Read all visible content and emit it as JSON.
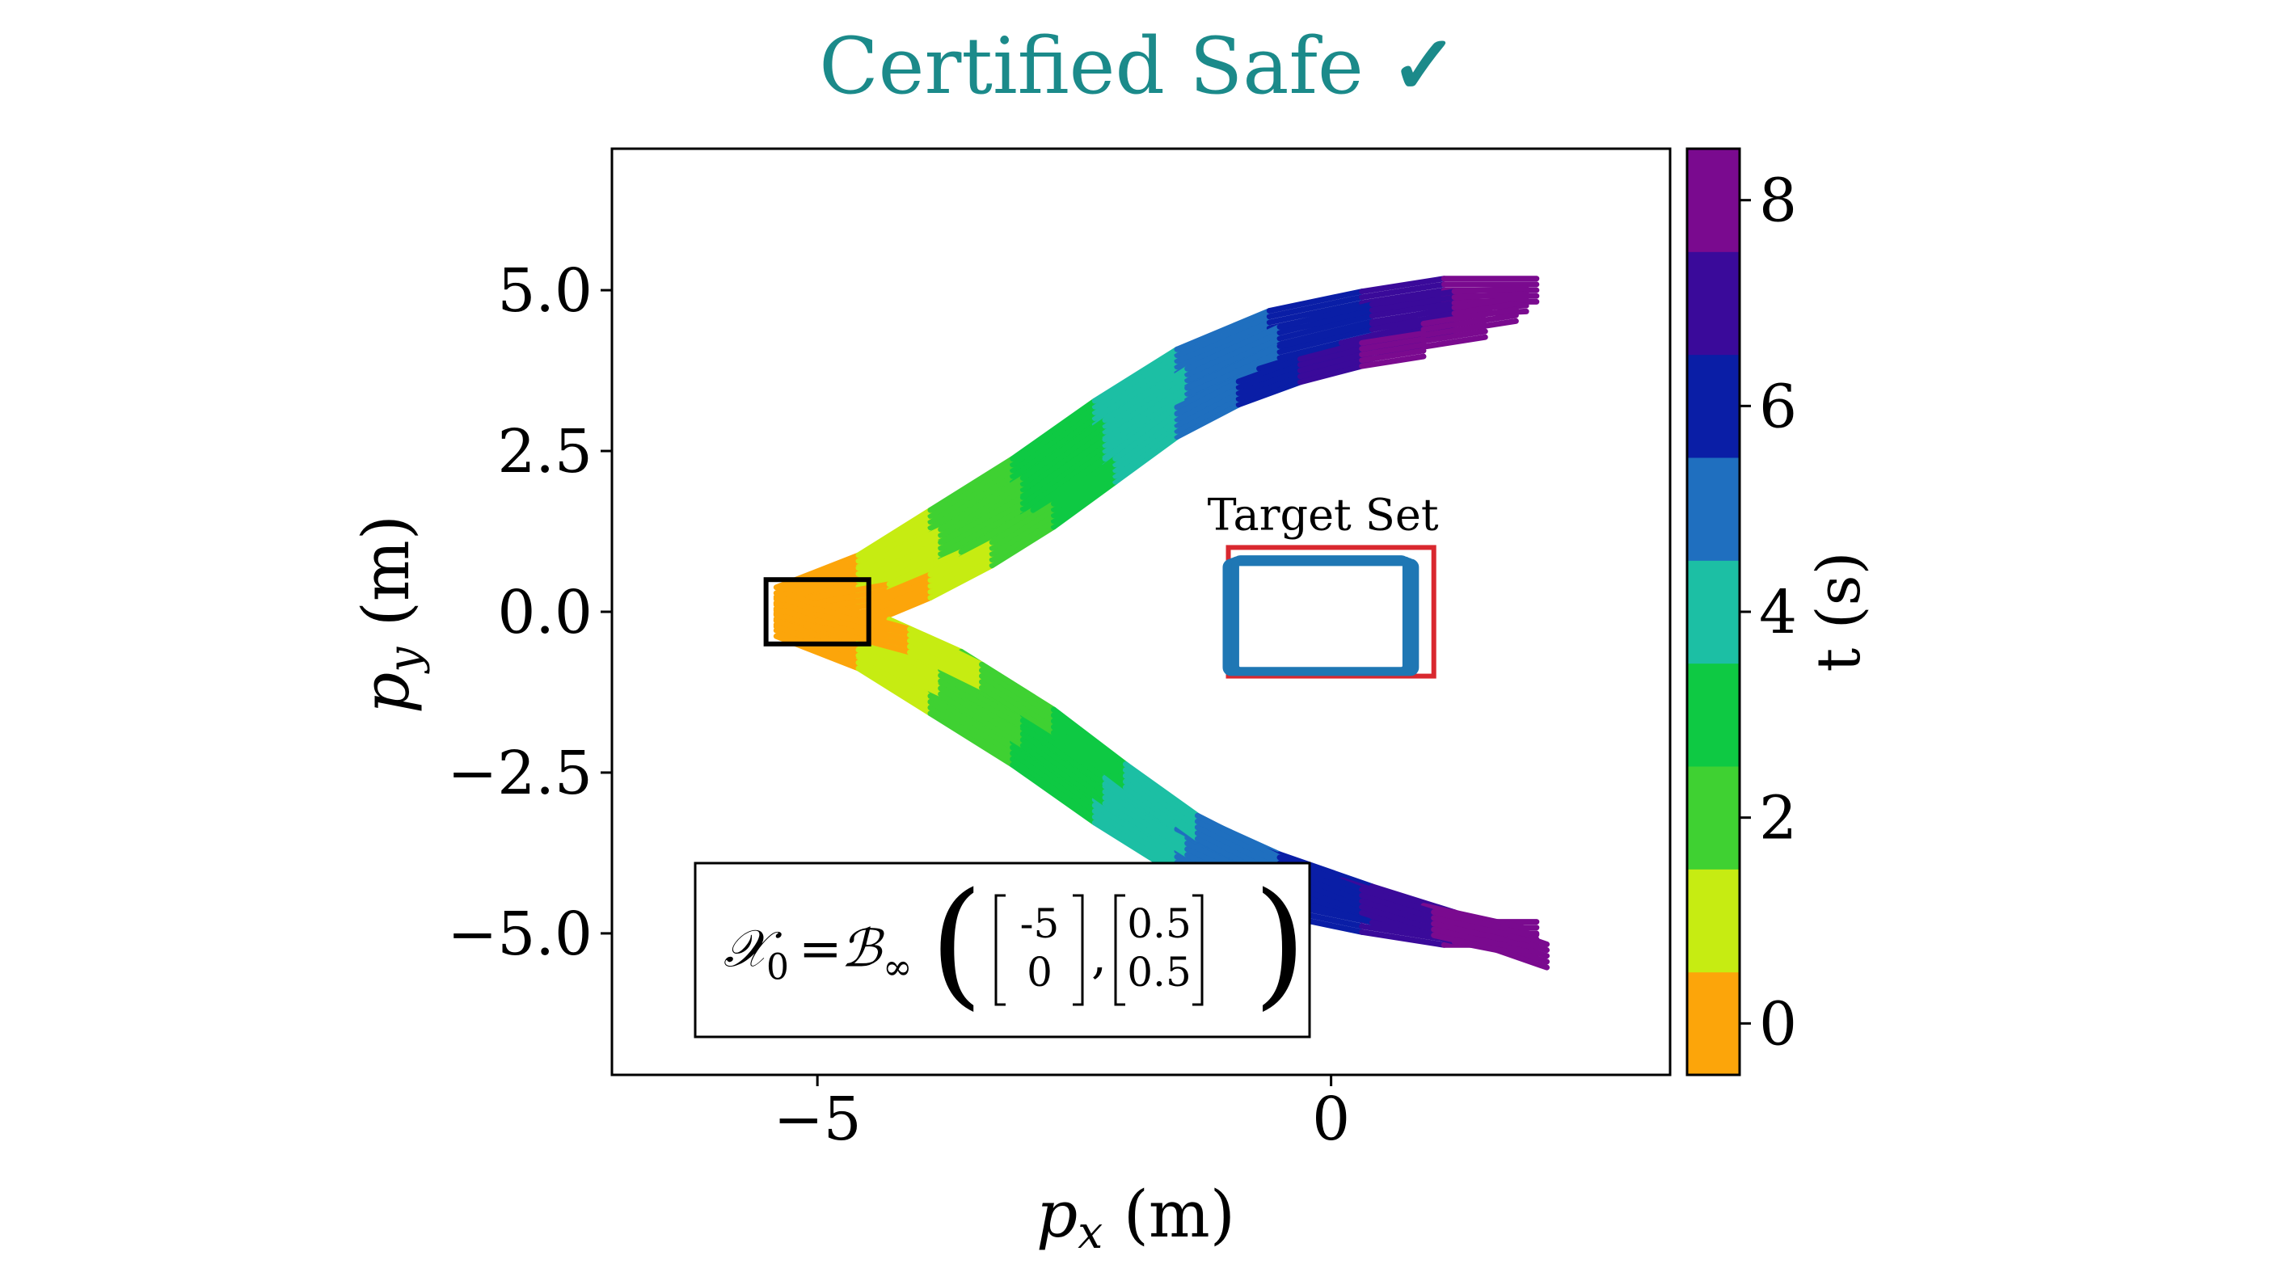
{
  "title": "Certified Safe",
  "title_mark": "✓",
  "title_color": "#1b8a8a",
  "chart_data": {
    "type": "line",
    "xlabel_symbol": "p",
    "xlabel_sub": "x",
    "xlabel_unit": " (m)",
    "ylabel_symbol": "p",
    "ylabel_sub": "y",
    "ylabel_unit": " (m)",
    "xlim": [
      -7.0,
      3.3
    ],
    "ylim": [
      -7.2,
      7.2
    ],
    "xticks": [
      {
        "v": -5,
        "label": "−5"
      },
      {
        "v": 0,
        "label": "0"
      }
    ],
    "yticks": [
      {
        "v": 5.0,
        "label": "5.0"
      },
      {
        "v": 2.5,
        "label": "2.5"
      },
      {
        "v": 0.0,
        "label": "0.0"
      },
      {
        "v": -2.5,
        "label": "−2.5"
      },
      {
        "v": -5.0,
        "label": "−5.0"
      }
    ],
    "grid": false,
    "colorbar": {
      "label": "t (s)",
      "range": [
        -0.5,
        8.5
      ],
      "ticks": [
        {
          "v": 0,
          "label": "0"
        },
        {
          "v": 2,
          "label": "2"
        },
        {
          "v": 4,
          "label": "4"
        },
        {
          "v": 6,
          "label": "6"
        },
        {
          "v": 8,
          "label": "8"
        }
      ],
      "colors": [
        "#fca50a",
        "#c6ec12",
        "#3fd132",
        "#0ec943",
        "#1cbfa4",
        "#1f6fbf",
        "#0a1ea6",
        "#3a0a9a",
        "#7a0a8f"
      ]
    },
    "series": [
      {
        "x": [
          -5.4,
          -4.6,
          -3.9,
          -3.1,
          -2.3,
          -1.5,
          -0.6,
          0.3,
          1.1,
          2.0
        ],
        "y": [
          0.2,
          0.7,
          1.4,
          2.2,
          3.1,
          3.9,
          4.5,
          4.8,
          5.0,
          5.0
        ]
      },
      {
        "x": [
          -5.4,
          -4.6,
          -3.8,
          -3.0,
          -2.2,
          -1.4,
          -0.5,
          0.4,
          1.2,
          1.9
        ],
        "y": [
          0.05,
          0.5,
          1.1,
          1.9,
          2.8,
          3.6,
          4.25,
          4.6,
          4.8,
          4.85
        ]
      },
      {
        "x": [
          -5.3,
          -4.6,
          -3.8,
          -3.0,
          -2.2,
          -1.4,
          -0.5,
          0.4,
          1.2,
          1.8
        ],
        "y": [
          -0.1,
          0.3,
          0.9,
          1.6,
          2.5,
          3.3,
          3.95,
          4.3,
          4.55,
          4.7
        ]
      },
      {
        "x": [
          -5.0,
          -4.3,
          -3.6,
          -2.9,
          -2.2,
          -1.5,
          -0.7,
          0.1,
          0.9,
          1.5
        ],
        "y": [
          0.05,
          0.25,
          0.75,
          1.4,
          2.2,
          3.0,
          3.6,
          4.0,
          4.3,
          4.45
        ]
      },
      {
        "x": [
          -4.5,
          -3.9,
          -3.3,
          -2.7,
          -2.1,
          -1.5,
          -0.9,
          -0.3,
          0.3,
          0.9
        ],
        "y": [
          0.0,
          0.4,
          0.9,
          1.5,
          2.2,
          2.9,
          3.4,
          3.75,
          4.0,
          4.15
        ]
      },
      {
        "x": [
          -5.4,
          -4.6,
          -3.9,
          -3.1,
          -2.3,
          -1.5,
          -0.6,
          0.3,
          1.1,
          2.0
        ],
        "y": [
          -0.2,
          -0.7,
          -1.4,
          -2.2,
          -3.1,
          -3.9,
          -4.5,
          -4.8,
          -5.0,
          -5.0
        ]
      },
      {
        "x": [
          -5.4,
          -4.6,
          -3.8,
          -3.0,
          -2.2,
          -1.4,
          -0.5,
          0.4,
          1.2,
          2.0
        ],
        "y": [
          -0.05,
          -0.5,
          -1.1,
          -1.9,
          -2.8,
          -3.6,
          -4.25,
          -4.65,
          -4.95,
          -5.2
        ]
      },
      {
        "x": [
          -5.3,
          -4.6,
          -3.8,
          -3.0,
          -2.2,
          -1.4,
          -0.5,
          0.4,
          1.2,
          2.1
        ],
        "y": [
          0.1,
          -0.3,
          -0.9,
          -1.6,
          -2.5,
          -3.3,
          -3.95,
          -4.45,
          -4.85,
          -5.35
        ]
      },
      {
        "x": [
          -5.0,
          -4.3,
          -3.6,
          -2.9,
          -2.2,
          -1.5,
          -0.7,
          0.1,
          0.9,
          1.9
        ],
        "y": [
          -0.05,
          -0.3,
          -0.8,
          -1.5,
          -2.4,
          -3.2,
          -3.85,
          -4.35,
          -4.75,
          -5.1
        ]
      },
      {
        "x": [
          -4.8,
          -4.1,
          -3.4,
          -2.7,
          -2.0,
          -1.3,
          -0.5,
          0.3,
          1.0,
          1.7
        ],
        "y": [
          -0.15,
          -0.45,
          -1.0,
          -1.7,
          -2.55,
          -3.35,
          -4.0,
          -4.5,
          -4.85,
          -5.1
        ]
      }
    ],
    "initial_set_box": {
      "x": [
        -5.5,
        -4.5
      ],
      "y": [
        -0.5,
        0.5
      ]
    },
    "initial_set_formula": {
      "lhs": "𝒳",
      "lhs_sub": "0",
      "rhs": "ℬ",
      "rhs_sub": "∞",
      "center": [
        "-5",
        "0"
      ],
      "radius": [
        "0.5",
        "0.5"
      ]
    },
    "target_set": {
      "label": "Target Set",
      "x": [
        -1.0,
        1.0
      ],
      "y": [
        -1.0,
        1.0
      ],
      "color": "#d9282f"
    },
    "reach_set_color": "#1f77b4"
  }
}
